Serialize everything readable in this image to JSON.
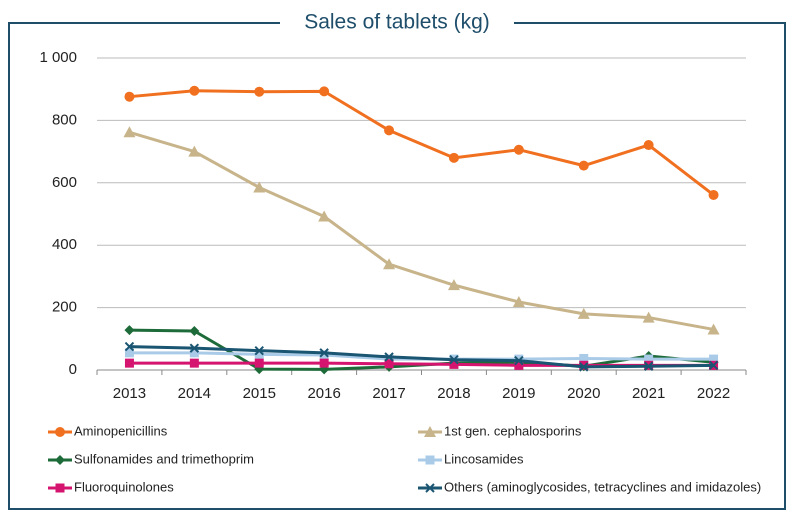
{
  "chart_data": {
    "type": "line",
    "title": "Sales of tablets (kg)",
    "categories": [
      "2013",
      "2014",
      "2015",
      "2016",
      "2017",
      "2018",
      "2019",
      "2020",
      "2021",
      "2022"
    ],
    "series": [
      {
        "name": "Aminopenicillins",
        "color": "#f07020",
        "marker": "circle",
        "values": [
          876,
          895,
          892,
          893,
          768,
          680,
          706,
          655,
          721,
          561
        ]
      },
      {
        "name": "1st gen. cephalosporins",
        "color": "#c8b48a",
        "marker": "triangle",
        "values": [
          762,
          700,
          585,
          492,
          339,
          272,
          218,
          180,
          168,
          130
        ]
      },
      {
        "name": "Sulfonamides and trimethoprim",
        "color": "#1e6b3a",
        "marker": "diamond",
        "values": [
          128,
          125,
          3,
          2,
          10,
          22,
          25,
          12,
          45,
          25
        ]
      },
      {
        "name": "Lincosamides",
        "color": "#aacbe8",
        "marker": "square",
        "values": [
          55,
          55,
          50,
          48,
          35,
          35,
          35,
          37,
          35,
          35
        ]
      },
      {
        "name": "Fluoroquinolones",
        "color": "#d4146e",
        "marker": "square",
        "values": [
          22,
          22,
          22,
          22,
          20,
          18,
          15,
          15,
          15,
          15
        ]
      },
      {
        "name": "Others (aminoglycosides, tetracyclines and imidazoles)",
        "color": "#1a5572",
        "marker": "x",
        "values": [
          75,
          70,
          62,
          55,
          42,
          33,
          30,
          10,
          12,
          15
        ]
      }
    ],
    "ylim": [
      0,
      1000
    ],
    "yticks": [
      0,
      200,
      400,
      600,
      800,
      {
        "value": 1000,
        "label": "1 000"
      }
    ],
    "grid": true,
    "legend": "bottom"
  }
}
